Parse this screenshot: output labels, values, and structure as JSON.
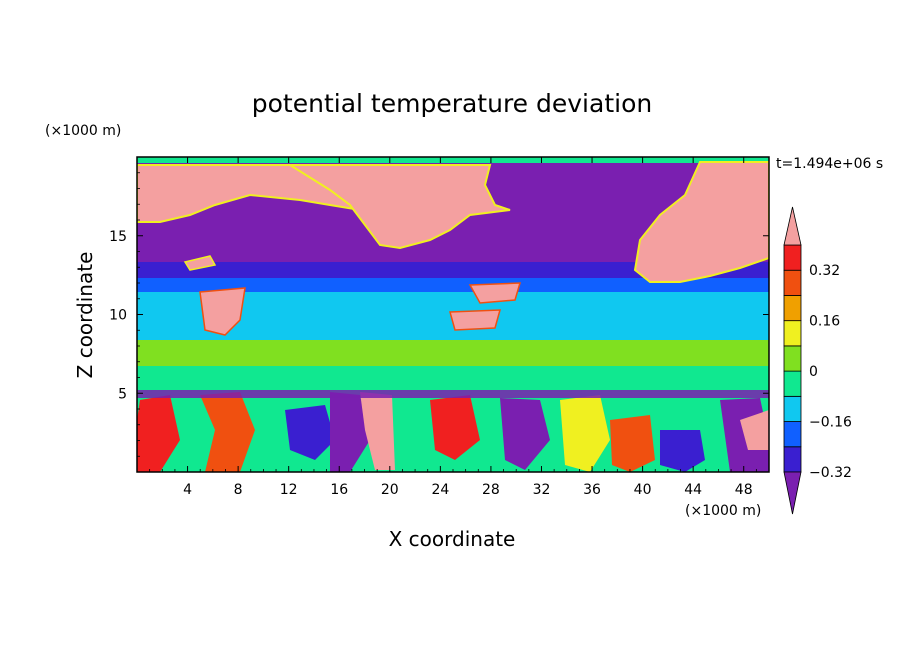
{
  "chart_data": {
    "type": "heatmap",
    "title": "potential temperature deviation",
    "xlabel": "X coordinate",
    "ylabel": "Z coordinate",
    "x_unit": "(×1000 m)",
    "y_unit": "(×1000 m)",
    "time_label": "t=1.494e+06 s",
    "xlim": [
      0,
      50
    ],
    "ylim": [
      0,
      20
    ],
    "x_ticks": [
      4,
      8,
      12,
      16,
      20,
      24,
      28,
      32,
      36,
      40,
      44,
      48
    ],
    "y_ticks": [
      5,
      10,
      15
    ],
    "x_tick_labels": [
      "4",
      "8",
      "12",
      "16",
      "20",
      "24",
      "28",
      "32",
      "36",
      "40",
      "44",
      "48"
    ],
    "y_tick_labels": [
      "5",
      "10",
      "15"
    ],
    "colorbar": {
      "levels": [
        -0.4,
        -0.32,
        -0.24,
        -0.16,
        -0.08,
        0,
        0.08,
        0.16,
        0.24,
        0.32,
        0.4
      ],
      "labeled_levels": [
        0.32,
        0.16,
        0,
        -0.16,
        -0.32
      ],
      "labels": [
        "0.32",
        "0.16",
        "0",
        "−0.16",
        "−0.32"
      ],
      "colors_low_to_high": [
        "#7a1fb0",
        "#3a1fd0",
        "#1060ff",
        "#10c8f0",
        "#10e890",
        "#80e020",
        "#f0f020",
        "#f0a000",
        "#f05010",
        "#f02020",
        "#f4a0a0"
      ],
      "extend": "both"
    },
    "bands": [
      {
        "z_range": [
          13.5,
          20
        ],
        "pattern": "violet with pink patches"
      },
      {
        "z_range": [
          11.5,
          13.5
        ],
        "pattern": "blue"
      },
      {
        "z_range": [
          8.5,
          11.5
        ],
        "pattern": "cyan"
      },
      {
        "z_range": [
          5.3,
          8.5
        ],
        "pattern": "green"
      },
      {
        "z_range": [
          0,
          5.3
        ],
        "pattern": "turbulent mixed"
      }
    ],
    "grid": false,
    "legend_position": "right"
  }
}
